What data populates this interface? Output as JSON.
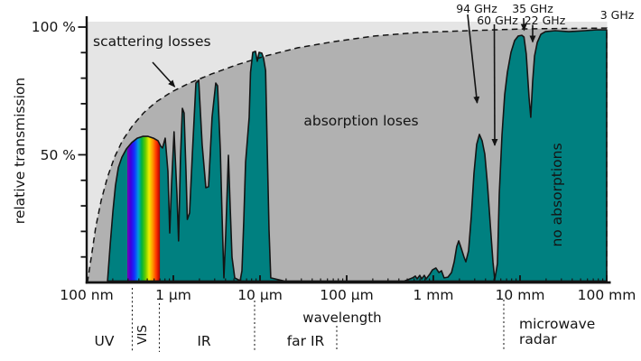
{
  "chart_data": {
    "type": "area",
    "title": "",
    "x_axis": {
      "label": "wavelength",
      "scale": "log",
      "range_um": [
        0.1,
        100000
      ],
      "tick_labels": [
        "100 nm",
        "1 µm",
        "10 µm",
        "100 µm",
        "1 mm",
        "10 mm",
        "100 mm"
      ],
      "tick_values_um": [
        0.1,
        1,
        10,
        100,
        1000,
        10000,
        100000
      ]
    },
    "y_axis": {
      "label": "relative transmission",
      "range_pct": [
        0,
        100
      ],
      "tick_labels": [
        "100 %",
        "50 %"
      ],
      "tick_pcts": [
        100,
        50
      ]
    },
    "regions": {
      "scattering": "scattering losses",
      "absorption": "absorption loses",
      "no_absorption": "no absorptions"
    },
    "bands": [
      {
        "label": "UV"
      },
      {
        "label": "VIS"
      },
      {
        "label": "IR"
      },
      {
        "label": "far IR"
      },
      {
        "label": "microwave radar"
      }
    ],
    "frequency_labels": [
      "94 GHz",
      "60 GHz",
      "35 GHz",
      "22 GHz",
      "3 GHz"
    ],
    "colors": {
      "transmission_fill": "#008080",
      "outline": "#141414",
      "scattering_bg": "#e5e5e5",
      "absorption_bg": "#b1b1b1",
      "spectrum": [
        "#7a00b3",
        "#3a00e0",
        "#1133ff",
        "#0099dd",
        "#00b33c",
        "#66cc00",
        "#eeee00",
        "#ff9900",
        "#ff3300",
        "#aa0000"
      ]
    },
    "visible_range_um": [
      0.294,
      0.7
    ],
    "transmission_curve": [
      [
        0.174,
        0.5
      ],
      [
        0.187,
        15
      ],
      [
        0.201,
        28
      ],
      [
        0.215,
        38
      ],
      [
        0.232,
        45
      ],
      [
        0.255,
        49
      ],
      [
        0.287,
        52.3
      ],
      [
        0.332,
        54.8
      ],
      [
        0.383,
        56.5
      ],
      [
        0.443,
        57.2
      ],
      [
        0.511,
        57.2
      ],
      [
        0.59,
        56.5
      ],
      [
        0.665,
        55.5
      ],
      [
        0.715,
        53.4
      ],
      [
        0.75,
        52.7
      ],
      [
        0.806,
        56.5
      ],
      [
        0.866,
        43.5
      ],
      [
        0.909,
        19.4
      ],
      [
        0.953,
        38.2
      ],
      [
        1.02,
        59
      ],
      [
        1.1,
        34.6
      ],
      [
        1.15,
        16.3
      ],
      [
        1.21,
        48.8
      ],
      [
        1.27,
        68.2
      ],
      [
        1.33,
        66.4
      ],
      [
        1.4,
        43.5
      ],
      [
        1.45,
        24.7
      ],
      [
        1.54,
        27.2
      ],
      [
        1.66,
        50.5
      ],
      [
        1.82,
        78.1
      ],
      [
        1.96,
        79.2
      ],
      [
        2.15,
        54.1
      ],
      [
        2.37,
        37.1
      ],
      [
        2.55,
        37.5
      ],
      [
        2.8,
        64.7
      ],
      [
        3.09,
        78.1
      ],
      [
        3.24,
        77
      ],
      [
        3.48,
        52.3
      ],
      [
        3.65,
        25.8
      ],
      [
        3.83,
        1.8
      ],
      [
        4.02,
        18.7
      ],
      [
        4.32,
        49.8
      ],
      [
        4.53,
        29.3
      ],
      [
        4.75,
        9.9
      ],
      [
        5.11,
        1.8
      ],
      [
        5.9,
        0.7
      ],
      [
        6.19,
        4.6
      ],
      [
        6.49,
        24
      ],
      [
        6.81,
        47
      ],
      [
        7.15,
        55.8
      ],
      [
        7.5,
        64.7
      ],
      [
        7.77,
        82.3
      ],
      [
        8.25,
        90.1
      ],
      [
        8.87,
        90.5
      ],
      [
        9.31,
        86.6
      ],
      [
        9.76,
        90.1
      ],
      [
        10.5,
        89.8
      ],
      [
        11,
        87.6
      ],
      [
        11.6,
        83
      ],
      [
        12.1,
        54.1
      ],
      [
        12.7,
        20.5
      ],
      [
        13.3,
        1.8
      ],
      [
        20,
        0.4
      ],
      [
        60,
        0.4
      ],
      [
        200,
        0.4
      ],
      [
        450,
        0.4
      ],
      [
        576,
        1.8
      ],
      [
        619,
        2.5
      ],
      [
        649,
        1.4
      ],
      [
        698,
        2.8
      ],
      [
        732,
        1.4
      ],
      [
        787,
        2.8
      ],
      [
        825,
        1.4
      ],
      [
        909,
        3.2
      ],
      [
        976,
        4.9
      ],
      [
        1070,
        5.7
      ],
      [
        1160,
        3.9
      ],
      [
        1240,
        4.6
      ],
      [
        1330,
        1.8
      ],
      [
        1470,
        2.1
      ],
      [
        1620,
        3.9
      ],
      [
        1740,
        8.1
      ],
      [
        1860,
        14.1
      ],
      [
        1960,
        16.3
      ],
      [
        2100,
        13.4
      ],
      [
        2260,
        9.9
      ],
      [
        2370,
        8.1
      ],
      [
        2550,
        12.4
      ],
      [
        2740,
        25.8
      ],
      [
        2940,
        42.8
      ],
      [
        3160,
        54.1
      ],
      [
        3400,
        58
      ],
      [
        3650,
        55.5
      ],
      [
        3920,
        50.2
      ],
      [
        4220,
        38.2
      ],
      [
        4530,
        23
      ],
      [
        4870,
        8.1
      ],
      [
        5110,
        1.1
      ],
      [
        5490,
        7.4
      ],
      [
        5760,
        34.6
      ],
      [
        6190,
        57.6
      ],
      [
        6650,
        73.5
      ],
      [
        7150,
        82.3
      ],
      [
        7870,
        90.1
      ],
      [
        8660,
        94.7
      ],
      [
        9530,
        96.5
      ],
      [
        10500,
        96.8
      ],
      [
        11100,
        96.1
      ],
      [
        11800,
        89.4
      ],
      [
        12700,
        72.4
      ],
      [
        13300,
        64.7
      ],
      [
        14000,
        78.8
      ],
      [
        14700,
        88.7
      ],
      [
        15800,
        94
      ],
      [
        17400,
        97.2
      ],
      [
        19600,
        98.2
      ],
      [
        25500,
        98.6
      ],
      [
        36500,
        98.2
      ],
      [
        56200,
        98.6
      ],
      [
        75000,
        98.9
      ],
      [
        100000,
        98.9
      ]
    ],
    "scattering_envelope": [
      [
        0.102,
        0
      ],
      [
        0.113,
        9.9
      ],
      [
        0.127,
        21.6
      ],
      [
        0.147,
        32.2
      ],
      [
        0.174,
        41.3
      ],
      [
        0.21,
        49.1
      ],
      [
        0.261,
        55.8
      ],
      [
        0.34,
        61.5
      ],
      [
        0.453,
        66.4
      ],
      [
        0.634,
        70.7
      ],
      [
        0.953,
        74.6
      ],
      [
        1.54,
        78.1
      ],
      [
        2.74,
        81.6
      ],
      [
        5.36,
        85.2
      ],
      [
        11.6,
        88.7
      ],
      [
        27.4,
        91.9
      ],
      [
        71.5,
        94.3
      ],
      [
        210,
        96.5
      ],
      [
        698,
        97.9
      ],
      [
        2610,
        98.6
      ],
      [
        11000,
        99.3
      ],
      [
        100000,
        99.6
      ]
    ]
  }
}
